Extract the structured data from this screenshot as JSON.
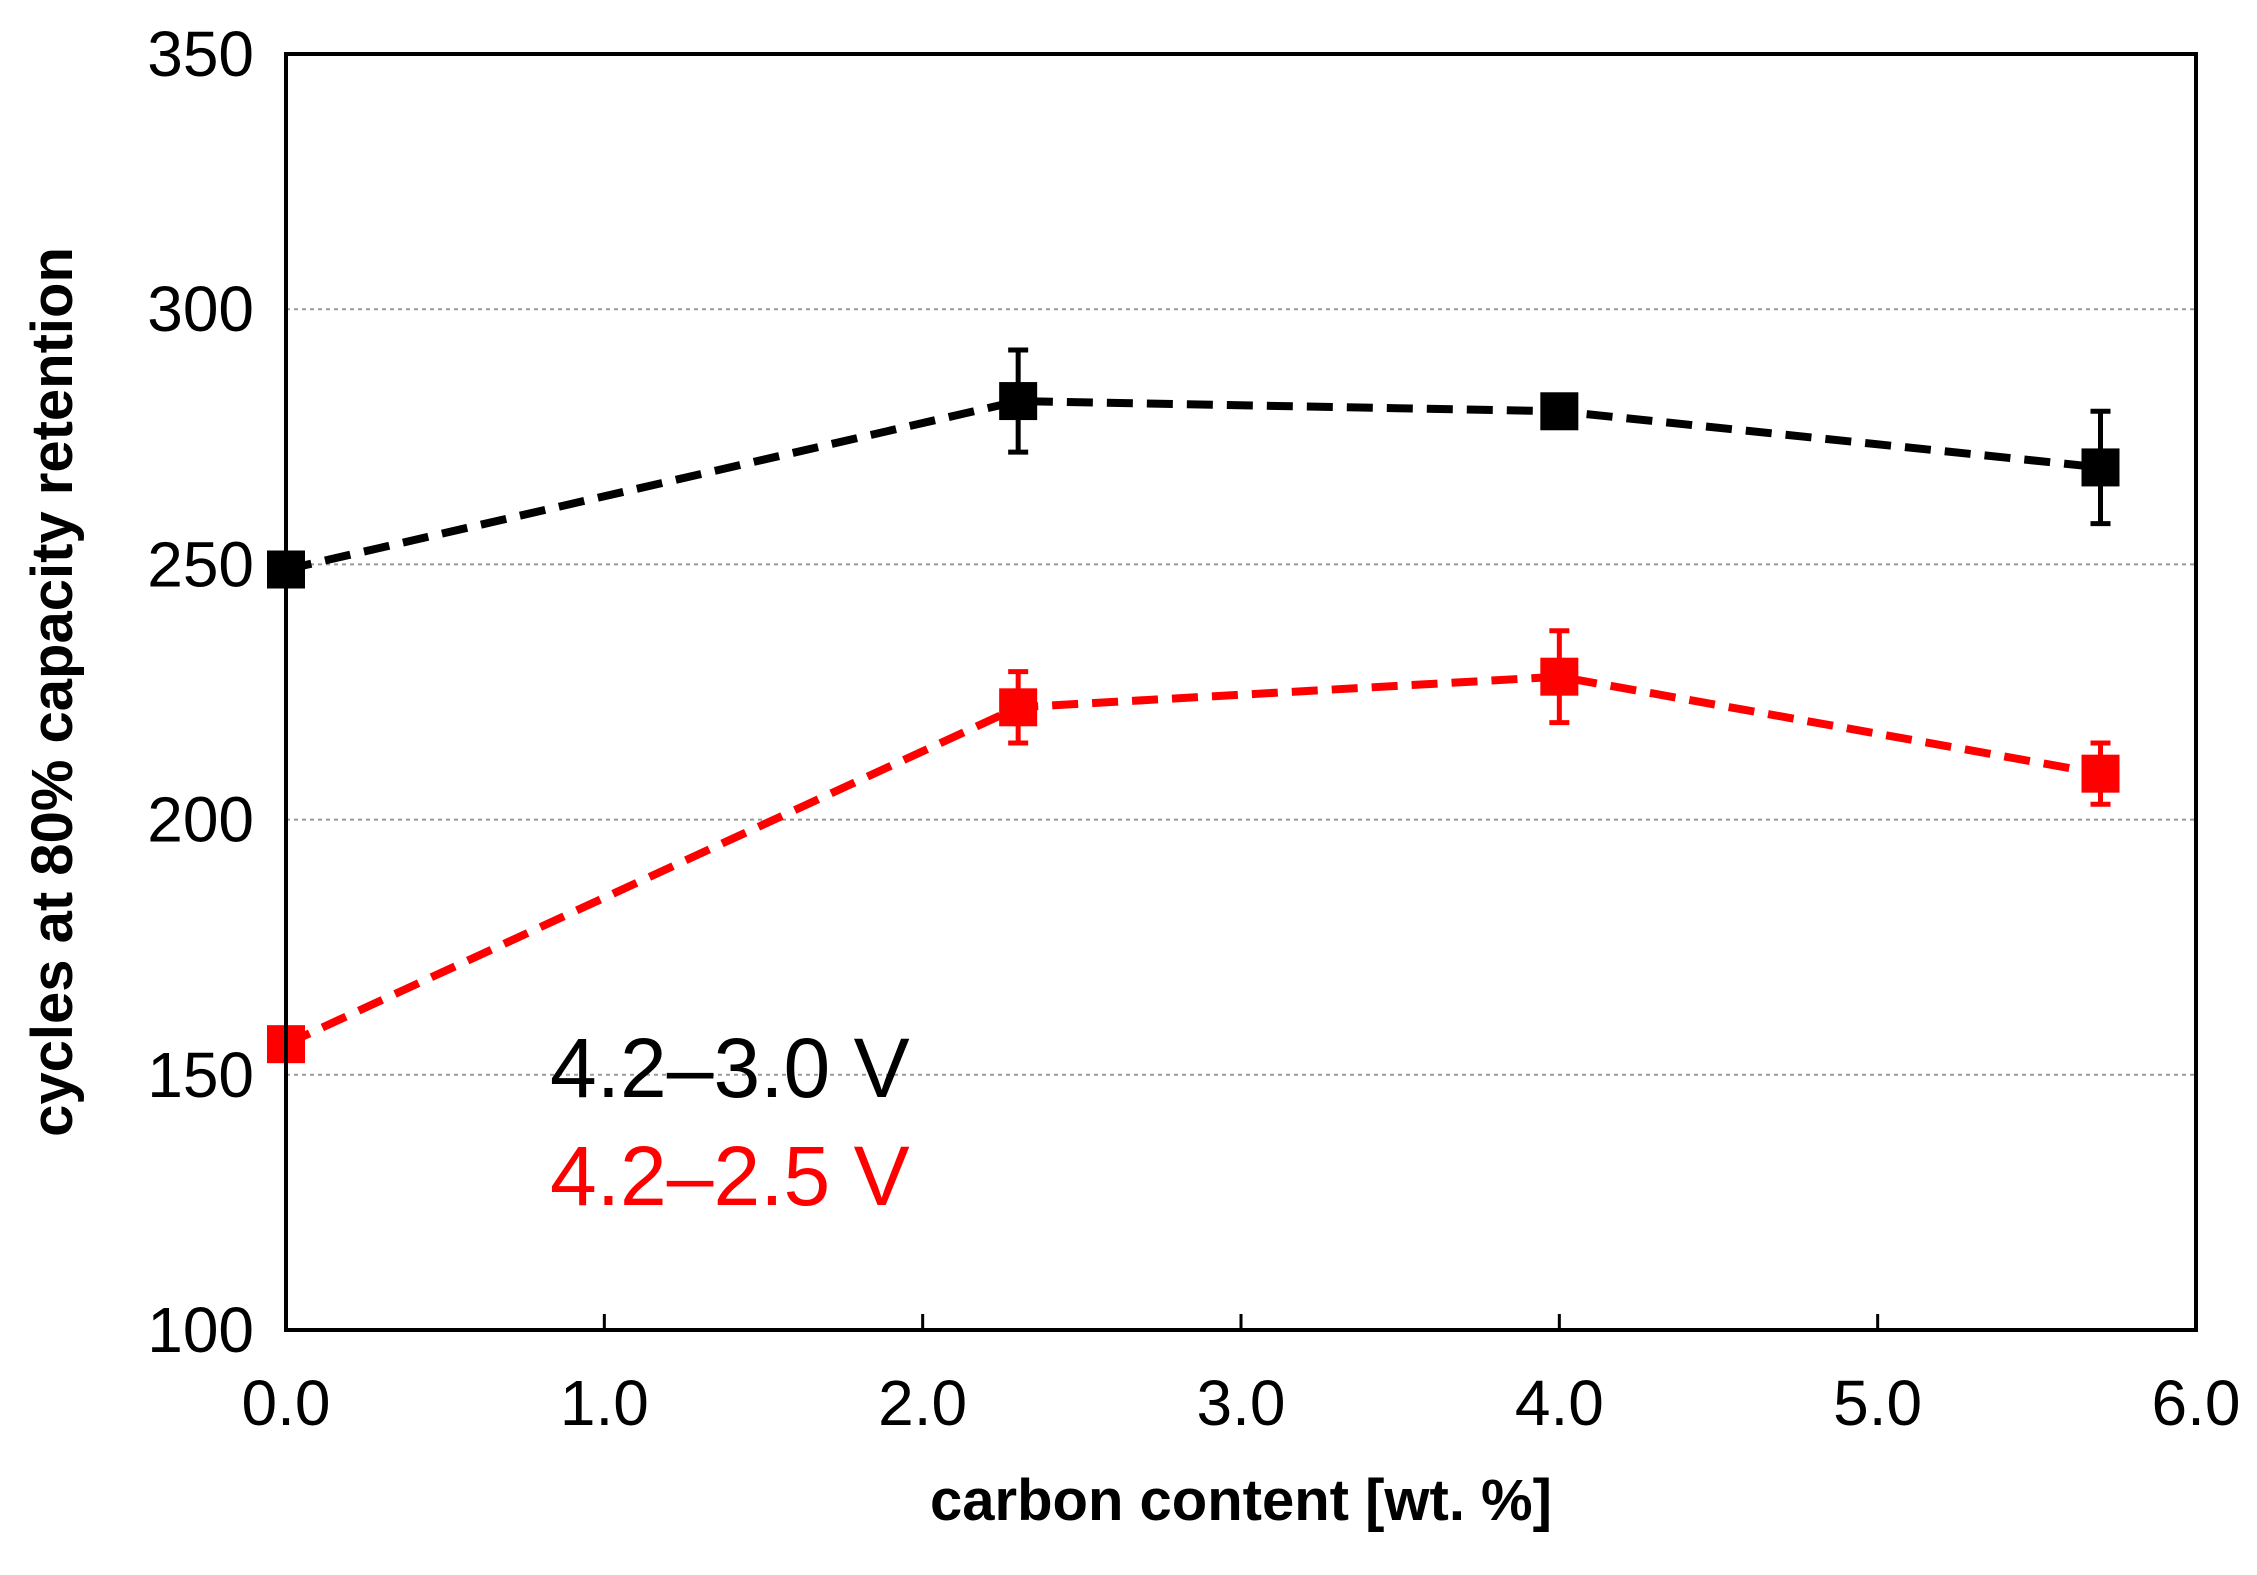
{
  "chart_data": {
    "type": "line",
    "title": "",
    "xlabel": "carbon content  [wt. %]",
    "ylabel": "cycles at 80% capacity retention",
    "xlim": [
      0,
      6
    ],
    "ylim": [
      100,
      350
    ],
    "x_ticks": [
      0,
      1,
      2,
      3,
      4,
      5,
      6
    ],
    "x_tick_labels": [
      "0.0",
      "1.0",
      "2.0",
      "3.0",
      "4.0",
      "5.0",
      "6.0"
    ],
    "y_ticks": [
      100,
      150,
      200,
      250,
      300,
      350
    ],
    "y_tick_labels": [
      "100",
      "150",
      "200",
      "250",
      "300",
      "350"
    ],
    "grid": "horizontal dotted",
    "legend_position": "bottom-left",
    "x": [
      0.0,
      2.3,
      4.0,
      5.7
    ],
    "series": [
      {
        "name": "4.2–3.0 V",
        "color": "#000000",
        "values": [
          249,
          282,
          280,
          269
        ],
        "errors": [
          3,
          10,
          3,
          11
        ]
      },
      {
        "name": "4.2–2.5 V",
        "color": "#ff0000",
        "values": [
          156,
          222,
          228,
          209
        ],
        "errors": [
          3,
          7,
          9,
          6
        ]
      }
    ]
  }
}
